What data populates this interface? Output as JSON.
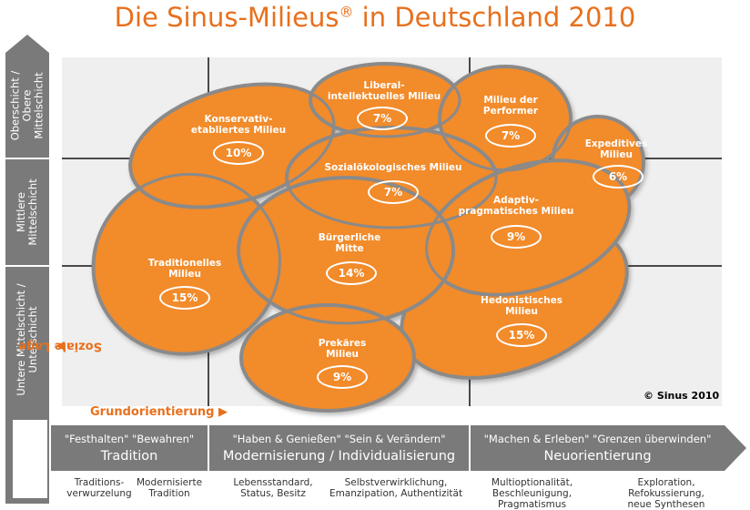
{
  "title": {
    "main": "Die Sinus-Milieus",
    "reg": "®",
    "rest": " in Deutschland 2010"
  },
  "soziale_lage": {
    "label": "Soziale Lage",
    "layers": [
      {
        "line1": "Oberschicht /",
        "line2": "Obere",
        "line3": "Mittelschicht"
      },
      {
        "line1": "Mittlere",
        "line2": "Mittelschicht"
      },
      {
        "line1": "Untere Mittelschicht /",
        "line2": "Unterschicht"
      }
    ]
  },
  "grundorientierung": {
    "label": "Grundorientierung",
    "segments": [
      {
        "quotes": "\"Festhalten\" \"Bewahren\"",
        "name": "Tradition"
      },
      {
        "quotes": "\"Haben & Genießen\" \"Sein & Verändern\"",
        "name": "Modernisierung / Individualisierung"
      },
      {
        "quotes": "\"Machen & Erleben\" \"Grenzen überwinden\"",
        "name": "Neuorientierung"
      }
    ],
    "sub": [
      {
        "l1": "Traditions-",
        "l2": "verwurzelung",
        "l3": ""
      },
      {
        "l1": "Modernisierte",
        "l2": "Tradition",
        "l3": ""
      },
      {
        "l1": "Lebensstandard,",
        "l2": "Status, Besitz",
        "l3": ""
      },
      {
        "l1": "Selbstverwirklichung,",
        "l2": "Emanzipation, Authentizität",
        "l3": ""
      },
      {
        "l1": "Multioptionalität,",
        "l2": "Beschleunigung,",
        "l3": "Pragmatismus"
      },
      {
        "l1": "Exploration,",
        "l2": "Refokussierung,",
        "l3": "neue Synthesen"
      }
    ]
  },
  "milieus": [
    {
      "l1": "Konservativ-",
      "l2": "etabliertes Milieu",
      "pct": "10%"
    },
    {
      "l1": "Liberal-",
      "l2": "intellektuelles Milieu",
      "pct": "7%"
    },
    {
      "l1": "Milieu der",
      "l2": "Performer",
      "pct": "7%"
    },
    {
      "l1": "Expeditives",
      "l2": "Milieu",
      "pct": "6%"
    },
    {
      "l1": "Sozialökologisches Milieu",
      "l2": "",
      "pct": "7%"
    },
    {
      "l1": "Adaptiv-",
      "l2": "pragmatisches Milieu",
      "pct": "9%"
    },
    {
      "l1": "Bürgerliche",
      "l2": "Mitte",
      "pct": "14%"
    },
    {
      "l1": "Traditionelles",
      "l2": "Milieu",
      "pct": "15%"
    },
    {
      "l1": "Hedonistisches",
      "l2": "Milieu",
      "pct": "15%"
    },
    {
      "l1": "Prekäres",
      "l2": "Milieu",
      "pct": "9%"
    }
  ],
  "copyright": "© Sinus 2010",
  "colors": {
    "orange": "#f28b2c",
    "orange_dark": "#e8701d",
    "outline": "#8a8a8a",
    "gray": "#7a7a7a"
  }
}
